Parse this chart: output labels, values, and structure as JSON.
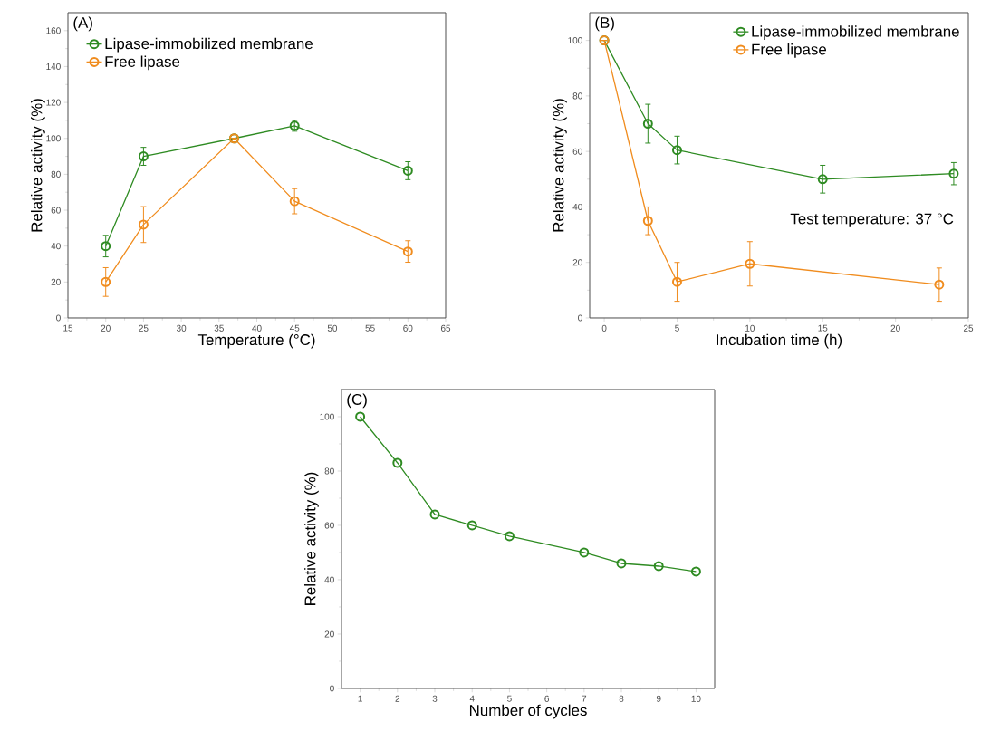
{
  "chart_data": [
    {
      "type": "line",
      "xlabel": "Temperature (°C)",
      "ylabel": "Relative activity (%)",
      "annotations": [
        "(A)"
      ],
      "xlim": [
        15,
        65
      ],
      "ylim": [
        0,
        170
      ],
      "xticks": [
        15,
        20,
        25,
        30,
        35,
        40,
        45,
        50,
        55,
        60,
        65
      ],
      "yticks": [
        0,
        20,
        40,
        60,
        80,
        100,
        120,
        140,
        160
      ],
      "x": [
        20,
        25,
        37,
        45,
        60
      ],
      "legend": "top left",
      "marker": "circle",
      "grid": false,
      "series": [
        {
          "name": "Lipase-immobilized membrane",
          "color": "#2e8b22",
          "values": [
            40,
            90,
            100,
            107,
            82
          ],
          "errors": [
            6,
            5,
            null,
            3,
            5
          ]
        },
        {
          "name": "Free lipase",
          "color": "#f08c1e",
          "values": [
            20,
            52,
            100,
            65,
            37
          ],
          "errors": [
            8,
            10,
            null,
            7,
            6
          ]
        }
      ]
    },
    {
      "type": "line",
      "xlabel": "Incubation time (h)",
      "ylabel": "Relative activity (%)",
      "annotations": [
        "(B)",
        "Test temperature: 37 °C"
      ],
      "xlim": [
        -1,
        25
      ],
      "ylim": [
        0,
        110
      ],
      "xticks": [
        0,
        5,
        10,
        15,
        20,
        25
      ],
      "yticks": [
        0,
        20,
        40,
        60,
        80,
        100
      ],
      "legend": "top right",
      "marker": "circle",
      "grid": false,
      "series": [
        {
          "name": "Lipase-immobilized membrane",
          "color": "#2e8b22",
          "x": [
            0,
            3,
            5,
            15,
            24
          ],
          "values": [
            100,
            70,
            60.5,
            50,
            52
          ],
          "errors": [
            null,
            7,
            5,
            5,
            4
          ]
        },
        {
          "name": "Free lipase",
          "color": "#f08c1e",
          "x": [
            0,
            3,
            5,
            10,
            23
          ],
          "values": [
            100,
            35,
            13,
            19.5,
            12
          ],
          "errors": [
            null,
            5,
            7,
            8,
            6
          ]
        }
      ]
    },
    {
      "type": "line",
      "xlabel": "Number of cycles",
      "ylabel": "Relative activity (%)",
      "annotations": [
        "(C)"
      ],
      "xlim": [
        0.5,
        10.5
      ],
      "ylim": [
        0,
        110
      ],
      "xticks": [
        1,
        2,
        3,
        4,
        5,
        6,
        7,
        8,
        9,
        10
      ],
      "yticks": [
        0,
        20,
        40,
        60,
        80,
        100
      ],
      "marker": "circle",
      "grid": false,
      "series": [
        {
          "color": "#2e8b22",
          "x": [
            1,
            2,
            3,
            4,
            5,
            7,
            8,
            9,
            10
          ],
          "values": [
            100,
            83,
            64,
            60,
            56,
            50,
            46,
            45,
            43
          ]
        }
      ]
    }
  ]
}
